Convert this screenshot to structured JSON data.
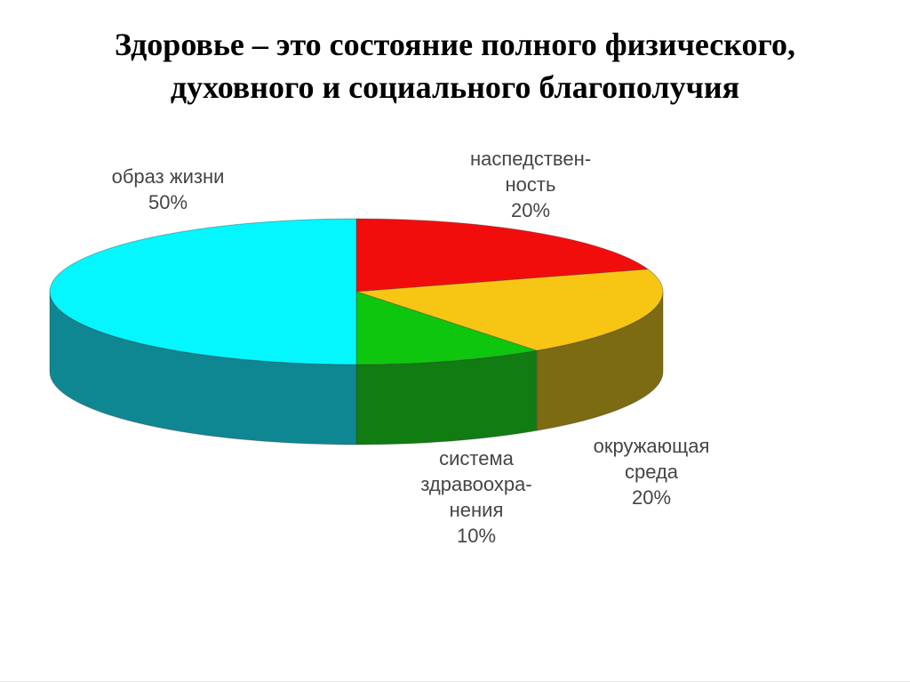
{
  "title": {
    "line1": "Здоровье – это состояние полного физического,",
    "line2": "духовного и социального благополучия"
  },
  "chart_data": {
    "type": "pie",
    "style": "3d-extruded",
    "unit": "%",
    "start_angle_clockwise_from_top_deg": 0,
    "legend": "none",
    "slices": [
      {
        "key": "heredity",
        "label_lines": [
          "наспедствен-",
          "ность"
        ],
        "percent_label": "20%",
        "value": 20,
        "color": "#F20D0D",
        "side_color": "#9A0A0A"
      },
      {
        "key": "environment",
        "label_lines": [
          "окружающая",
          "среда"
        ],
        "percent_label": "20%",
        "value": 20,
        "color": "#F7C513",
        "side_color": "#7D6B11"
      },
      {
        "key": "healthcare",
        "label_lines": [
          "система",
          "здравоохра-",
          "нения"
        ],
        "percent_label": "10%",
        "value": 10,
        "color": "#0FC60F",
        "side_color": "#117C11"
      },
      {
        "key": "lifestyle",
        "label_lines": [
          "образ жизни"
        ],
        "percent_label": "50%",
        "value": 50,
        "color": "#04F6FF",
        "side_color": "#0F8793"
      }
    ]
  },
  "labels": {
    "lifestyle": {
      "line1": "образ жизни",
      "line2": "50%"
    },
    "heredity": {
      "line1": "наспедствен-",
      "line2": "ность",
      "line3": "20%"
    },
    "healthcare": {
      "line1": "система",
      "line2": "здравоохра-",
      "line3": "нения",
      "line4": "10%"
    },
    "environment": {
      "line1": "окружающая",
      "line2": "среда",
      "line3": "20%"
    }
  },
  "colors": {
    "background": "#FFFFFF",
    "title_text": "#000000",
    "label_text": "#454545",
    "slice_outline": "rgba(50,50,50,0.35)"
  }
}
